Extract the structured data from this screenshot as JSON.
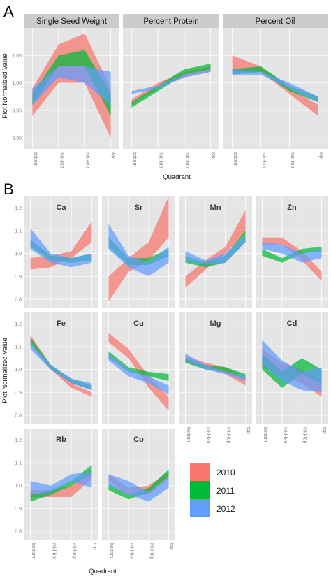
{
  "colors": {
    "2010": "#F8766D",
    "2011": "#00BA38",
    "2012": "#619CFF",
    "panel_bg": "#E5E5E5",
    "strip_bg": "#CCCCCC",
    "grid": "#F5F5F5"
  },
  "legend": {
    "entries": [
      "2010",
      "2011",
      "2012"
    ]
  },
  "chart_data": [
    {
      "type": "area",
      "panel_label": "A",
      "xlabel": "Quadrant",
      "ylabel": "Plot Normalized  Value",
      "categories": [
        "bottom",
        "mid-bot",
        "mid-top",
        "top"
      ],
      "ylim": [
        0.88,
        1.1
      ],
      "yticks": [
        0.9,
        0.95,
        1.0,
        1.05
      ],
      "ytick_labels": [
        "0.90",
        "0.95",
        "1.00",
        "1.05"
      ],
      "grid": true,
      "facets": [
        {
          "title": "Single Seed Weight",
          "series": [
            {
              "name": "2010",
              "low": [
                0.94,
                1.0,
                1.0,
                0.9
              ],
              "high": [
                0.99,
                1.07,
                1.09,
                0.99
              ]
            },
            {
              "name": "2011",
              "low": [
                0.96,
                1.03,
                1.03,
                0.94
              ],
              "high": [
                0.98,
                1.05,
                1.06,
                0.98
              ]
            },
            {
              "name": "2012",
              "low": [
                0.96,
                1.01,
                1.0,
                0.96
              ],
              "high": [
                0.99,
                1.03,
                1.03,
                1.02
              ]
            }
          ]
        },
        {
          "title": "Percent Protein",
          "series": [
            {
              "name": "2010",
              "low": [
                0.96,
                0.99,
                1.01,
                1.02
              ],
              "high": [
                0.97,
                1.0,
                1.02,
                1.03
              ]
            },
            {
              "name": "2011",
              "low": [
                0.955,
                0.985,
                1.015,
                1.025
              ],
              "high": [
                0.965,
                0.995,
                1.025,
                1.035
              ]
            },
            {
              "name": "2012",
              "low": [
                0.98,
                0.99,
                1.01,
                1.02
              ],
              "high": [
                0.985,
                0.995,
                1.015,
                1.025
              ]
            }
          ]
        },
        {
          "title": "Percent Oil",
          "series": [
            {
              "name": "2010",
              "low": [
                1.02,
                1.02,
                0.98,
                0.94
              ],
              "high": [
                1.05,
                1.03,
                0.99,
                0.96
              ]
            },
            {
              "name": "2011",
              "low": [
                1.015,
                1.02,
                0.985,
                0.965
              ],
              "high": [
                1.025,
                1.03,
                0.995,
                0.975
              ]
            },
            {
              "name": "2012",
              "low": [
                1.015,
                1.015,
                0.99,
                0.965
              ],
              "high": [
                1.025,
                1.02,
                1.0,
                0.975
              ]
            }
          ]
        }
      ]
    },
    {
      "type": "area",
      "panel_label": "B",
      "xlabel": "Quadrant",
      "ylabel": "Plot Normalized  Value",
      "categories": [
        "bottom",
        "mid-bot",
        "mid-top",
        "top"
      ],
      "ylim": [
        0.76,
        1.25
      ],
      "yticks": [
        0.8,
        0.9,
        1.0,
        1.1,
        1.2
      ],
      "ytick_labels": [
        "0.8",
        "0.9",
        "1.0",
        "1.1",
        "1.2"
      ],
      "grid": true,
      "facets": [
        {
          "title": "Ca",
          "series": [
            {
              "name": "2010",
              "low": [
                0.93,
                0.94,
                0.98,
                1.05
              ],
              "high": [
                0.98,
                0.99,
                1.01,
                1.14
              ]
            },
            {
              "name": "2011",
              "low": [
                1.03,
                0.97,
                0.96,
                0.97
              ],
              "high": [
                1.06,
                0.99,
                0.98,
                1.0
              ]
            },
            {
              "name": "2012",
              "low": [
                1.02,
                0.96,
                0.94,
                0.96
              ],
              "high": [
                1.11,
                1.0,
                0.98,
                1.0
              ]
            }
          ]
        },
        {
          "title": "Sr",
          "series": [
            {
              "name": "2010",
              "low": [
                0.79,
                0.92,
                0.97,
                1.07
              ],
              "high": [
                0.9,
                0.98,
                1.05,
                1.25
              ]
            },
            {
              "name": "2011",
              "low": [
                1.03,
                0.95,
                0.95,
                0.99
              ],
              "high": [
                1.07,
                0.98,
                0.98,
                1.02
              ]
            },
            {
              "name": "2012",
              "low": [
                1.02,
                0.94,
                0.9,
                0.96
              ],
              "high": [
                1.13,
                0.99,
                0.96,
                1.03
              ]
            }
          ]
        },
        {
          "title": "Mn",
          "series": [
            {
              "name": "2010",
              "low": [
                0.85,
                0.93,
                1.0,
                1.09
              ],
              "high": [
                0.9,
                0.97,
                1.03,
                1.19
              ]
            },
            {
              "name": "2011",
              "low": [
                0.96,
                0.94,
                0.96,
                1.05
              ],
              "high": [
                0.99,
                0.96,
                0.99,
                1.1
              ]
            },
            {
              "name": "2012",
              "low": [
                0.97,
                0.95,
                0.96,
                1.05
              ],
              "high": [
                1.01,
                0.97,
                1.0,
                1.08
              ]
            }
          ]
        },
        {
          "title": "Zn",
          "series": [
            {
              "name": "2010",
              "low": [
                1.04,
                1.04,
                0.97,
                0.88
              ],
              "high": [
                1.07,
                1.07,
                1.01,
                0.92
              ]
            },
            {
              "name": "2011",
              "low": [
                0.99,
                0.96,
                1.0,
                1.01
              ],
              "high": [
                1.02,
                0.98,
                1.02,
                1.03
              ]
            },
            {
              "name": "2012",
              "low": [
                1.02,
                1.0,
                0.96,
                0.98
              ],
              "high": [
                1.05,
                1.04,
                1.0,
                1.02
              ]
            }
          ]
        },
        {
          "title": "Fe",
          "series": [
            {
              "name": "2010",
              "low": [
                1.11,
                1.0,
                0.92,
                0.88
              ],
              "high": [
                1.15,
                1.02,
                0.94,
                0.9
              ]
            },
            {
              "name": "2011",
              "low": [
                1.11,
                1.0,
                0.94,
                0.91
              ],
              "high": [
                1.14,
                1.02,
                0.96,
                0.93
              ]
            },
            {
              "name": "2012",
              "low": [
                1.09,
                1.0,
                0.94,
                0.91
              ],
              "high": [
                1.12,
                1.02,
                0.96,
                0.94
              ]
            }
          ]
        },
        {
          "title": "Cu",
          "series": [
            {
              "name": "2010",
              "low": [
                1.12,
                1.05,
                0.92,
                0.82
              ],
              "high": [
                1.16,
                1.09,
                0.97,
                0.88
              ]
            },
            {
              "name": "2011",
              "low": [
                1.05,
                0.99,
                0.97,
                0.95
              ],
              "high": [
                1.08,
                1.01,
                0.99,
                0.98
              ]
            },
            {
              "name": "2012",
              "low": [
                1.04,
                0.97,
                0.94,
                0.89
              ],
              "high": [
                1.07,
                1.0,
                0.97,
                0.93
              ]
            }
          ]
        },
        {
          "title": "Mg",
          "series": [
            {
              "name": "2010",
              "low": [
                1.03,
                1.01,
                0.98,
                0.93
              ],
              "high": [
                1.06,
                1.03,
                1.01,
                0.96
              ]
            },
            {
              "name": "2011",
              "low": [
                1.03,
                1.0,
                0.99,
                0.96
              ],
              "high": [
                1.05,
                1.02,
                1.01,
                0.98
              ]
            },
            {
              "name": "2012",
              "low": [
                1.04,
                1.0,
                0.98,
                0.95
              ],
              "high": [
                1.07,
                1.02,
                0.99,
                0.97
              ]
            }
          ]
        },
        {
          "title": "Cd",
          "series": [
            {
              "name": "2010",
              "low": [
                1.01,
                0.97,
                0.94,
                0.88
              ],
              "high": [
                1.09,
                1.03,
                1.0,
                0.95
              ]
            },
            {
              "name": "2011",
              "low": [
                1.0,
                0.92,
                0.98,
                0.94
              ],
              "high": [
                1.07,
                0.99,
                1.05,
                1.0
              ]
            },
            {
              "name": "2012",
              "low": [
                1.02,
                0.95,
                0.91,
                0.9
              ],
              "high": [
                1.13,
                1.04,
                0.99,
                1.01
              ]
            }
          ]
        },
        {
          "title": "Rb",
          "series": [
            {
              "name": "2010",
              "low": [
                0.95,
                0.95,
                0.95,
                1.03
              ],
              "high": [
                0.98,
                0.98,
                1.0,
                1.07
              ]
            },
            {
              "name": "2011",
              "low": [
                0.93,
                0.96,
                1.0,
                1.05
              ],
              "high": [
                0.96,
                0.98,
                1.02,
                1.09
              ]
            },
            {
              "name": "2012",
              "low": [
                0.96,
                0.97,
                1.02,
                0.99
              ],
              "high": [
                1.02,
                1.0,
                1.05,
                1.06
              ]
            }
          ]
        },
        {
          "title": "Co",
          "series": [
            {
              "name": "2010",
              "low": [
                1.02,
                0.96,
                0.96,
                1.03
              ],
              "high": [
                1.05,
                0.99,
                1.0,
                1.06
              ]
            },
            {
              "name": "2011",
              "low": [
                0.98,
                0.94,
                0.97,
                1.04
              ],
              "high": [
                1.01,
                0.96,
                0.99,
                1.07
              ]
            },
            {
              "name": "2012",
              "low": [
                1.0,
                0.96,
                0.93,
                0.99
              ],
              "high": [
                1.05,
                1.02,
                0.97,
                1.04
              ]
            }
          ]
        }
      ]
    }
  ]
}
